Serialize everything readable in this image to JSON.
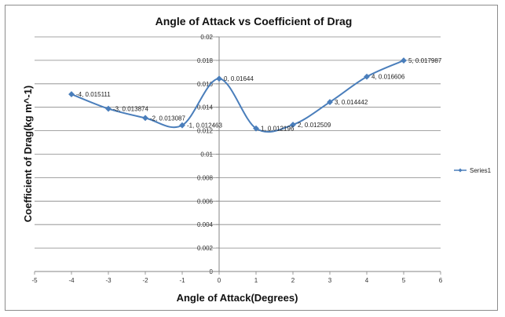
{
  "chart_data": {
    "type": "line",
    "title": "Angle of Attack vs Coefficient of Drag",
    "xlabel": "Angle of Attack(Degrees)",
    "ylabel": "Coefficient of Drag(kg m^-1)",
    "xlim": [
      -5,
      6
    ],
    "ylim": [
      0,
      0.02
    ],
    "xticks": [
      "-5",
      "-4",
      "-3",
      "-2",
      "-1",
      "0",
      "1",
      "2",
      "3",
      "4",
      "5",
      "6"
    ],
    "yticks": [
      "0",
      "0.002",
      "0.004",
      "0.006",
      "0.008",
      "0.01",
      "0.012",
      "0.014",
      "0.016",
      "0.018",
      "0.02"
    ],
    "grid": true,
    "smooth": true,
    "legend_position": "right",
    "series": [
      {
        "name": "Series1",
        "color": "#4a7ebb",
        "x": [
          -4,
          -3,
          -2,
          -1,
          0,
          1,
          2,
          3,
          4,
          5
        ],
        "y": [
          0.015111,
          0.013874,
          0.013087,
          0.012463,
          0.01644,
          0.012196,
          0.012509,
          0.014442,
          0.016606,
          0.017987
        ]
      }
    ],
    "data_labels": [
      "-4, 0.015111",
      "-3, 0.013874",
      "-2, 0.013087",
      "-1, 0.012463",
      "0, 0.01644",
      "1, 0.012196",
      "2, 0.012509",
      "3, 0.014442",
      "4, 0.016606",
      "5, 0.017987"
    ]
  }
}
